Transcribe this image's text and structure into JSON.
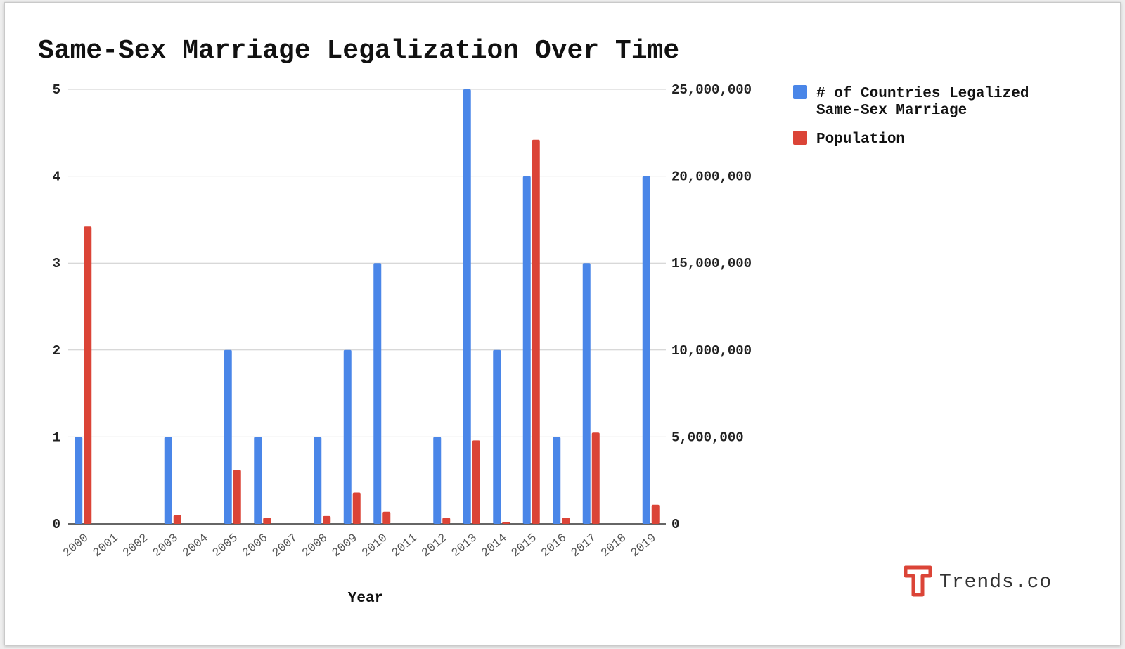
{
  "chart_data": {
    "type": "bar",
    "title": "Same-Sex Marriage Legalization Over Time",
    "xlabel": "Year",
    "ylabel": "",
    "y2label": "",
    "categories": [
      "2000",
      "2001",
      "2002",
      "2003",
      "2004",
      "2005",
      "2006",
      "2007",
      "2008",
      "2009",
      "2010",
      "2011",
      "2012",
      "2013",
      "2014",
      "2015",
      "2016",
      "2017",
      "2018",
      "2019"
    ],
    "series": [
      {
        "name": "# of Countries Legalized Same-Sex Marriage",
        "axis": "left",
        "color": "#4a86e8",
        "values": [
          1,
          0,
          0,
          1,
          0,
          2,
          1,
          0,
          1,
          2,
          3,
          0,
          1,
          5,
          2,
          4,
          1,
          3,
          0,
          4
        ]
      },
      {
        "name": "Population",
        "axis": "right",
        "color": "#db4437",
        "values": [
          17100000,
          0,
          0,
          500000,
          0,
          3100000,
          350000,
          0,
          450000,
          1800000,
          700000,
          0,
          350000,
          4800000,
          100000,
          22100000,
          350000,
          5250000,
          0,
          1100000
        ]
      }
    ],
    "ylim": [
      0,
      5
    ],
    "y2lim": [
      0,
      25000000
    ],
    "yticks": [
      "0",
      "1",
      "2",
      "3",
      "4",
      "5"
    ],
    "y2ticks": [
      "0",
      "5,000,000",
      "10,000,000",
      "15,000,000",
      "20,000,000",
      "25,000,000"
    ],
    "grid": true,
    "legend_position": "right"
  },
  "legend": {
    "series1_line1": "# of Countries Legalized",
    "series1_line2": "Same-Sex Marriage",
    "series2": "Population"
  },
  "brand": {
    "name": "Trends.co",
    "color": "#db4437"
  }
}
